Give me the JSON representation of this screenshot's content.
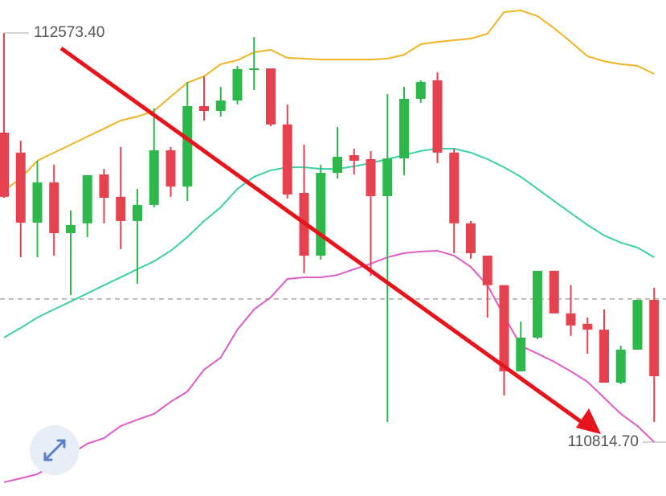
{
  "chart_data": {
    "type": "candlestick",
    "ylim": [
      110583,
      112715
    ],
    "up_color": "#2eb84b",
    "down_color": "#e5414f",
    "open": [
      112145,
      112059,
      111758,
      111931,
      111713,
      111755,
      111965,
      111869,
      111765,
      111834,
      112069,
      111913,
      112259,
      112238,
      112283,
      112414,
      112421,
      112180,
      111886,
      111616,
      111972,
      112048,
      112031,
      111872,
      112034,
      112290,
      112370,
      112059,
      111755,
      111616,
      111489,
      111119,
      111264,
      111551,
      111368,
      111323,
      111298,
      111070,
      111212,
      111426
    ],
    "high": [
      112573.4,
      112110,
      112024,
      112007,
      111810,
      111962,
      111989,
      112083,
      111903,
      112249,
      112083,
      112363,
      112387,
      112342,
      112432,
      112556,
      112421,
      112266,
      112093,
      112007,
      112169,
      112076,
      112066,
      112311,
      112342,
      112370,
      112404,
      112076,
      111765,
      111616,
      111489,
      111333,
      111551,
      111551,
      111489,
      111350,
      111385,
      111229,
      111426,
      111478
    ],
    "low": [
      111865,
      111609,
      111609,
      111616,
      111447,
      111696,
      111755,
      111644,
      111495,
      111824,
      111869,
      111851,
      112197,
      112214,
      112266,
      112328,
      112173,
      111862,
      111540,
      111599,
      111948,
      111965,
      111530,
      110901,
      111962,
      112273,
      112014,
      111627,
      111603,
      111350,
      111015,
      111119,
      111257,
      111368,
      111271,
      111195,
      111070,
      111064,
      111212,
      110901
    ],
    "close": [
      111869,
      111758,
      111931,
      111713,
      111748,
      111962,
      111865,
      111765,
      111834,
      112069,
      111913,
      112259,
      112238,
      112283,
      112418,
      112421,
      112180,
      111879,
      111616,
      111972,
      112041,
      112024,
      111872,
      112034,
      112290,
      112363,
      112059,
      111755,
      111627,
      111489,
      111119,
      111264,
      111551,
      111368,
      111316,
      111298,
      111070,
      111212,
      111426,
      111098
    ],
    "bands": [
      {
        "color": "#f0b323",
        "values": [
          111896,
          111948,
          112024,
          112059,
          112093,
          112128,
          112162,
          112197,
          112214,
          112238,
          112300,
          112359,
          112387,
          112439,
          112456,
          112490,
          112501,
          112466,
          112463,
          112459,
          112459,
          112459,
          112459,
          112463,
          112480,
          112525,
          112535,
          112542,
          112549,
          112570,
          112663,
          112670,
          112646,
          112594,
          112535,
          112473,
          112452,
          112439,
          112432,
          112397
        ]
      },
      {
        "color": "#3cd0a6",
        "values": [
          111264,
          111305,
          111350,
          111385,
          111419,
          111454,
          111489,
          111523,
          111558,
          111592,
          111637,
          111696,
          111765,
          111824,
          111903,
          111955,
          111983,
          111996,
          111996,
          111989,
          111989,
          112000,
          112014,
          112031,
          112048,
          112066,
          112076,
          112076,
          112059,
          112031,
          111996,
          111955,
          111903,
          111851,
          111799,
          111748,
          111703,
          111672,
          111651,
          111609
        ]
      },
      {
        "color": "#e05ac8",
        "values": [
          110642,
          110659,
          110677,
          110718,
          110763,
          110808,
          110832,
          110884,
          110911,
          110936,
          110988,
          111032,
          111126,
          111178,
          111298,
          111385,
          111437,
          111516,
          111523,
          111523,
          111533,
          111558,
          111582,
          111609,
          111627,
          111634,
          111637,
          111616,
          111568,
          111489,
          111357,
          111229,
          111195,
          111160,
          111119,
          111074,
          111005,
          110936,
          110884,
          110815
        ]
      }
    ],
    "price_line": 111430,
    "markers": [
      {
        "label": "112573.40",
        "value": 112573.4
      },
      {
        "label": "110814.70",
        "value": 110814.7
      }
    ]
  }
}
